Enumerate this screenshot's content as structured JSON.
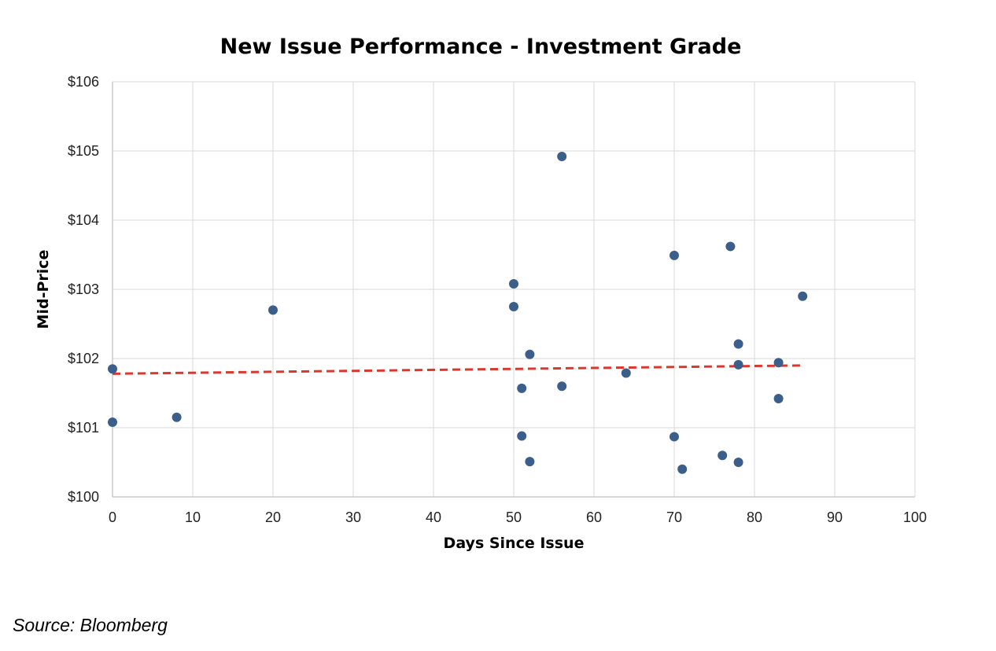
{
  "chart_data": {
    "type": "scatter",
    "title": "New Issue Performance - Investment Grade",
    "xlabel": "Days Since Issue",
    "ylabel": "Mid-Price",
    "xlim": [
      0,
      100
    ],
    "ylim": [
      100,
      106
    ],
    "x_ticks": [
      0,
      10,
      20,
      30,
      40,
      50,
      60,
      70,
      80,
      90,
      100
    ],
    "x_tick_labels": [
      "0",
      "10",
      "20",
      "30",
      "40",
      "50",
      "60",
      "70",
      "80",
      "90",
      "100"
    ],
    "y_ticks": [
      100,
      101,
      102,
      103,
      104,
      105,
      106
    ],
    "y_tick_labels": [
      "$100",
      "$101",
      "$102",
      "$103",
      "$104",
      "$105",
      "$106"
    ],
    "grid": true,
    "legend": "none",
    "series": [
      {
        "color": "#3b5f8a",
        "points": [
          {
            "x": 0,
            "y": 101.85
          },
          {
            "x": 0,
            "y": 101.08
          },
          {
            "x": 8,
            "y": 101.15
          },
          {
            "x": 20,
            "y": 102.7
          },
          {
            "x": 50,
            "y": 103.08
          },
          {
            "x": 50,
            "y": 102.75
          },
          {
            "x": 51,
            "y": 101.57
          },
          {
            "x": 51,
            "y": 100.88
          },
          {
            "x": 52,
            "y": 102.06
          },
          {
            "x": 52,
            "y": 100.51
          },
          {
            "x": 56,
            "y": 104.92
          },
          {
            "x": 56,
            "y": 101.6
          },
          {
            "x": 64,
            "y": 101.79
          },
          {
            "x": 70,
            "y": 103.49
          },
          {
            "x": 70,
            "y": 100.87
          },
          {
            "x": 71,
            "y": 100.4
          },
          {
            "x": 76,
            "y": 100.6
          },
          {
            "x": 77,
            "y": 103.62
          },
          {
            "x": 78,
            "y": 102.21
          },
          {
            "x": 78,
            "y": 101.91
          },
          {
            "x": 78,
            "y": 100.5
          },
          {
            "x": 83,
            "y": 101.94
          },
          {
            "x": 83,
            "y": 101.42
          },
          {
            "x": 86,
            "y": 102.9
          }
        ]
      }
    ],
    "trendline": {
      "style": "dashed",
      "color": "#e0352b",
      "points": [
        {
          "x": 0,
          "y": 101.78
        },
        {
          "x": 86,
          "y": 101.9
        }
      ]
    }
  },
  "source_note": "Source: Bloomberg"
}
